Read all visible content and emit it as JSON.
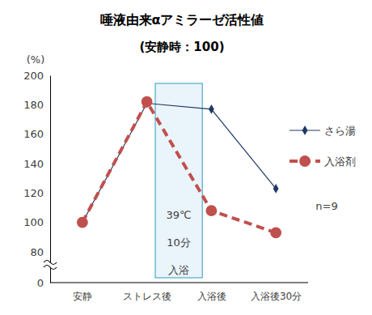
{
  "chart_data": {
    "type": "line",
    "title": "唾液由来αアミラーゼ活性値",
    "subtitle": "(安静時：100)",
    "y_label": "(%)",
    "categories": [
      "安静",
      "ストレス後",
      "入浴後",
      "入浴後30分"
    ],
    "series": [
      {
        "name": "さら湯",
        "color": "#1f3864",
        "marker": "diamond",
        "line_style": "solid",
        "values": [
          100,
          181,
          177,
          123
        ]
      },
      {
        "name": "入浴剤",
        "color": "#c0504d",
        "marker": "circle",
        "line_style": "dashed",
        "values": [
          100,
          182,
          108,
          93
        ]
      }
    ],
    "ylim": [
      0,
      200
    ],
    "yticks": [
      0,
      80,
      100,
      120,
      140,
      160,
      180,
      200
    ],
    "annotations": [
      "39℃",
      "10分",
      "入浴"
    ],
    "note": "n=9",
    "legend": "right",
    "grid": false
  }
}
